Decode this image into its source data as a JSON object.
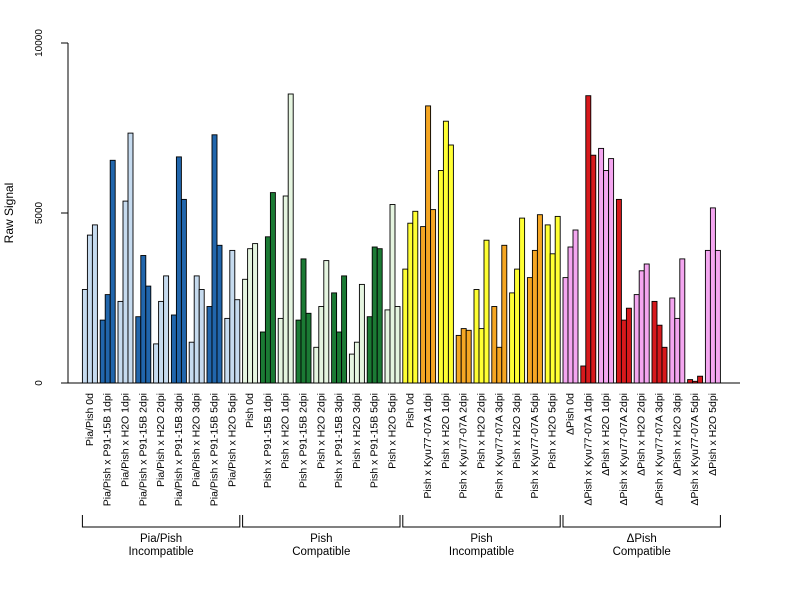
{
  "chart_data": {
    "type": "bar",
    "ylabel": "Raw Signal",
    "ylim": [
      0,
      10000
    ],
    "yticks": [
      0,
      5000,
      10000
    ],
    "categories": [
      "Pia/Pish 0d",
      "Pia/Pish x P91-15B 1dpi",
      "Pia/Pish x H2O 1dpi",
      "Pia/Pish x P91-15B 2dpi",
      "Pia/Pish x H2O 2dpi",
      "Pia/Pish x P91-15B 3dpi",
      "Pia/Pish x H2O 3dpi",
      "Pia/Pish x P91-15B 5dpi",
      "Pia/Pish x H2O 5dpi",
      "Pish 0d",
      "Pish x P91-15B 1dpi",
      "Pish x H2O 1dpi",
      "Pish x P91-15B 2dpi",
      "Pish x H2O 2dpi",
      "Pish x P91-15B 3dpi",
      "Pish x H2O 3dpi",
      "Pish x P91-15B 5dpi",
      "Pish x H2O 5dpi",
      "Pish 0d",
      "Pish x Kyu77-07A 1dpi",
      "Pish x H2O 1dpi",
      "Pish x Kyu77-07A 2dpi",
      "Pish x H2O 2dpi",
      "Pish x Kyu77-07A 3dpi",
      "Pish x H2O 3dpi",
      "Pish x Kyu77-07A 5dpi",
      "Pish x H2O 5dpi",
      "ΔPish 0d",
      "ΔPish x Kyu77-07A 1dpi",
      "ΔPish x H2O 1dpi",
      "ΔPish x Kyu77-07A 2dpi",
      "ΔPish x H2O 2dpi",
      "ΔPish x Kyu77-07A 3dpi",
      "ΔPish x H2O 3dpi",
      "ΔPish x Kyu77-07A 5dpi",
      "ΔPish x H2O 5dpi"
    ],
    "category_colors": [
      "#c6dbef",
      "#2166ac",
      "#c6dbef",
      "#2166ac",
      "#c6dbef",
      "#2166ac",
      "#c6dbef",
      "#2166ac",
      "#c6dbef",
      "#e5f5e0",
      "#1b7a34",
      "#e5f5e0",
      "#1b7a34",
      "#e5f5e0",
      "#1b7a34",
      "#e5f5e0",
      "#1b7a34",
      "#e5f5e0",
      "#ffff33",
      "#f5a623",
      "#ffff33",
      "#f5a623",
      "#ffff33",
      "#f5a623",
      "#ffff33",
      "#f5a623",
      "#ffff33",
      "#f4a6f0",
      "#d7191c",
      "#f4a6f0",
      "#d7191c",
      "#f4a6f0",
      "#d7191c",
      "#f4a6f0",
      "#d7191c",
      "#f4a6f0"
    ],
    "values": [
      [
        2750,
        4350,
        4650
      ],
      [
        1850,
        2600,
        6550
      ],
      [
        2400,
        5350,
        7350
      ],
      [
        1950,
        3750,
        2850
      ],
      [
        1150,
        2400,
        3150
      ],
      [
        2000,
        6650,
        5400
      ],
      [
        1200,
        3150,
        2750
      ],
      [
        2250,
        7300,
        4050
      ],
      [
        1900,
        3900,
        2450
      ],
      [
        3050,
        3950,
        4100
      ],
      [
        1500,
        4300,
        5600
      ],
      [
        1900,
        5500,
        8500
      ],
      [
        1850,
        3650,
        2050
      ],
      [
        1050,
        2250,
        3600
      ],
      [
        2650,
        1500,
        3150
      ],
      [
        850,
        1200,
        2900
      ],
      [
        1950,
        4000,
        3950
      ],
      [
        2150,
        5250,
        2250
      ],
      [
        3350,
        4700,
        5050
      ],
      [
        4600,
        8150,
        5100
      ],
      [
        6250,
        7700,
        7000
      ],
      [
        1400,
        1600,
        1550
      ],
      [
        2750,
        1600,
        4200
      ],
      [
        2250,
        1050,
        4050
      ],
      [
        2650,
        3350,
        4850
      ],
      [
        3100,
        3900,
        4950
      ],
      [
        4650,
        3800,
        4900
      ],
      [
        3100,
        4000,
        4500
      ],
      [
        500,
        8450,
        6700
      ],
      [
        6900,
        6250,
        6600
      ],
      [
        5400,
        1850,
        2200
      ],
      [
        2600,
        3300,
        3500
      ],
      [
        2400,
        1700,
        1050
      ],
      [
        2500,
        1900,
        3650
      ],
      [
        100,
        50,
        200
      ],
      [
        3900,
        5150,
        3900
      ]
    ],
    "groups": [
      {
        "label_line1": "Pia/Pish",
        "label_line2": "Incompatible",
        "start": 0,
        "end": 8
      },
      {
        "label_line1": "Pish",
        "label_line2": "Compatible",
        "start": 9,
        "end": 17
      },
      {
        "label_line1": "Pish",
        "label_line2": "Incompatible",
        "start": 18,
        "end": 26
      },
      {
        "label_line1": "ΔPish",
        "label_line2": "Compatible",
        "start": 27,
        "end": 35
      }
    ],
    "grid": false,
    "legend": "none"
  }
}
